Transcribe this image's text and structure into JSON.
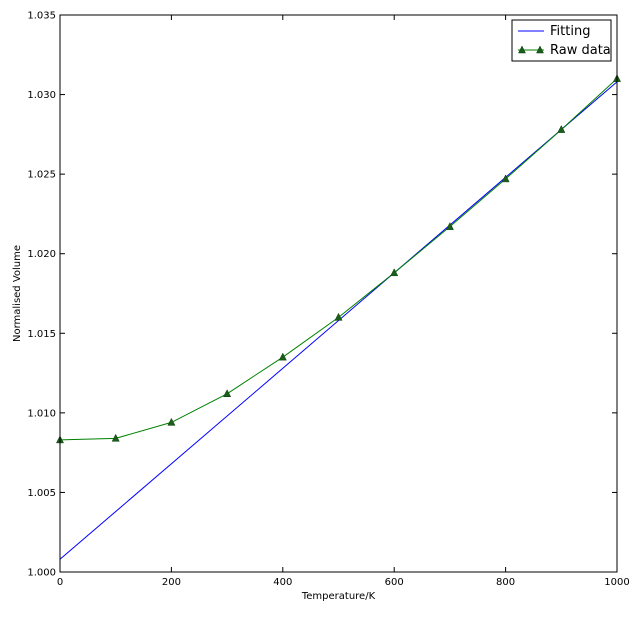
{
  "chart_data": {
    "type": "line",
    "title": "",
    "xlabel": "Temperature/K",
    "ylabel": "Normalised Volume",
    "xlim": [
      0,
      1000
    ],
    "ylim": [
      1.0,
      1.035
    ],
    "xticks": [
      0,
      200,
      400,
      600,
      800,
      1000
    ],
    "xtick_labels": [
      "0",
      "200",
      "400",
      "600",
      "800",
      "1000"
    ],
    "yticks": [
      1.0,
      1.005,
      1.01,
      1.015,
      1.02,
      1.025,
      1.03,
      1.035
    ],
    "ytick_labels": [
      "1.000",
      "1.005",
      "1.010",
      "1.015",
      "1.020",
      "1.025",
      "1.030",
      "1.035"
    ],
    "grid": false,
    "legend_position": "top-right",
    "series": [
      {
        "name": "Fitting",
        "color": "#0000ff",
        "marker": "none",
        "x": [
          0,
          1000
        ],
        "y": [
          1.0008,
          1.0308
        ]
      },
      {
        "name": "Raw data",
        "color": "#008000",
        "marker_color": "#1a5e1a",
        "marker": "triangle",
        "x": [
          0,
          100,
          200,
          300,
          400,
          500,
          600,
          700,
          800,
          900,
          1000
        ],
        "y": [
          1.0083,
          1.0084,
          1.0094,
          1.0112,
          1.0135,
          1.016,
          1.0188,
          1.0217,
          1.0247,
          1.0278,
          1.031
        ]
      }
    ]
  }
}
